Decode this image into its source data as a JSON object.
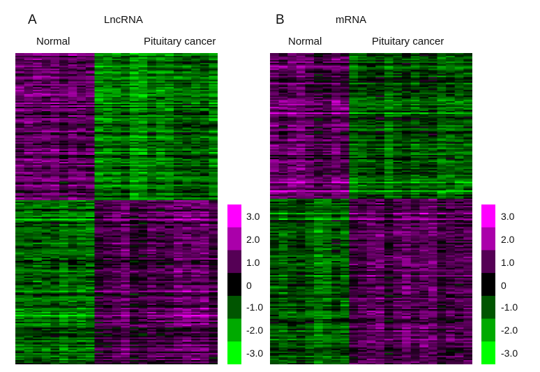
{
  "colors": {
    "high": "#ff00ff",
    "mid": "#000000",
    "low": "#00ff00"
  },
  "chart_data": [
    {
      "type": "heatmap",
      "panel": "A",
      "title": "LncRNA",
      "column_groups": [
        {
          "label": "Normal",
          "n_columns": 9
        },
        {
          "label": "Pituitary cancer",
          "n_columns": 14
        }
      ],
      "n_rows": 220,
      "value_range": [
        -3.0,
        3.0
      ],
      "colorbar": {
        "ticks": [
          "3.0",
          "2.0",
          "1.0",
          "0",
          "-1.0",
          "-2.0",
          "-3.0"
        ],
        "levels": [
          3,
          2,
          1,
          0,
          -1,
          -2,
          -3
        ]
      },
      "row_blocks": [
        {
          "rows": 104,
          "normal_level": 1.3,
          "cancer_level": -1.3
        },
        {
          "rows": 116,
          "normal_level": -1.1,
          "cancer_level": 1.0
        }
      ]
    },
    {
      "type": "heatmap",
      "panel": "B",
      "title": "mRNA",
      "column_groups": [
        {
          "label": "Normal",
          "n_columns": 9
        },
        {
          "label": "Pituitary cancer",
          "n_columns": 14
        }
      ],
      "n_rows": 220,
      "value_range": [
        -3.0,
        3.0
      ],
      "colorbar": {
        "ticks": [
          "3.0",
          "2.0",
          "1.0",
          "0",
          "-1.0",
          "-2.0",
          "-3.0"
        ],
        "levels": [
          3,
          2,
          1,
          0,
          -1,
          -2,
          -3
        ]
      },
      "row_blocks": [
        {
          "rows": 103,
          "normal_level": 1.1,
          "cancer_level": -1.1
        },
        {
          "rows": 117,
          "normal_level": -1.0,
          "cancer_level": 0.8
        }
      ]
    }
  ]
}
